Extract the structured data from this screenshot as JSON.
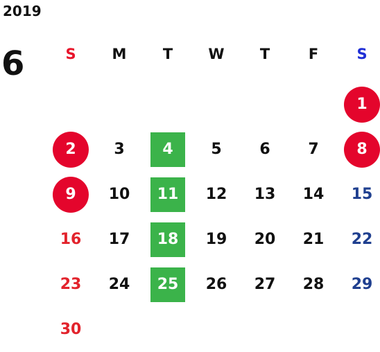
{
  "calendar": {
    "year": "2019",
    "month": "6",
    "weekdays": [
      "S",
      "M",
      "T",
      "W",
      "T",
      "F",
      "S"
    ],
    "colors": {
      "sunday": "#e2232c",
      "saturday_header": "#1f2fd6",
      "saturday": "#1f3f8f",
      "holiday_circle": "#e4052c",
      "green_highlight": "#3bb34a"
    },
    "weeks": [
      [
        "",
        "",
        "",
        "",
        "",
        "",
        "1"
      ],
      [
        "2",
        "3",
        "4",
        "5",
        "6",
        "7",
        "8"
      ],
      [
        "9",
        "10",
        "11",
        "12",
        "13",
        "14",
        "15"
      ],
      [
        "16",
        "17",
        "18",
        "19",
        "20",
        "21",
        "22"
      ],
      [
        "23",
        "24",
        "25",
        "26",
        "27",
        "28",
        "29"
      ],
      [
        "30",
        "",
        "",
        "",
        "",
        "",
        ""
      ]
    ],
    "circled_days": [
      "1",
      "2",
      "8",
      "9"
    ],
    "green_days": [
      "4",
      "11",
      "18",
      "25"
    ]
  }
}
